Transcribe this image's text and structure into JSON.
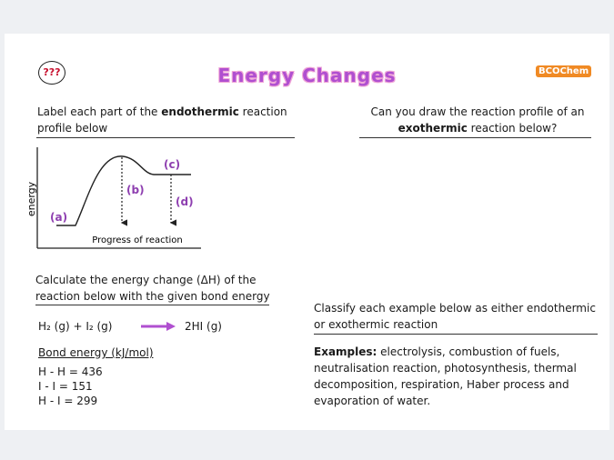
{
  "header": {
    "badge": "???",
    "title": "Energy Changes",
    "logo": "BCOChem"
  },
  "endothermic_task": {
    "text_before": "Label each part of the ",
    "bold": "endothermic",
    "text_after": " reaction profile below"
  },
  "diagram": {
    "y_axis": "energy",
    "x_axis": "Progress of reaction",
    "labels": [
      "(a)",
      "(b)",
      "(c)",
      "(d)"
    ]
  },
  "exothermic_task": {
    "text_before": "Can you draw the reaction profile of an ",
    "bold": "exothermic",
    "text_after": " reaction below?"
  },
  "calculation_task": {
    "text": "Calculate the energy change (ΔH) of the reaction below with the given bond energy"
  },
  "equation": {
    "reactants": "H₂ (g)  +  I₂ (g)",
    "products": "2HI (g)"
  },
  "bond_energy": {
    "heading": "Bond energy (kJ/mol)",
    "lines": [
      "H - H = 436",
      "I - I = 151",
      "H - I = 299"
    ]
  },
  "classify_task": {
    "text": "Classify each example below as either endothermic or exothermic reaction"
  },
  "examples": {
    "label": "Examples:",
    "text": " electrolysis, combustion of fuels, neutralisation reaction, photosynthesis, thermal decomposition, respiration, Haber process and evaporation of water."
  }
}
